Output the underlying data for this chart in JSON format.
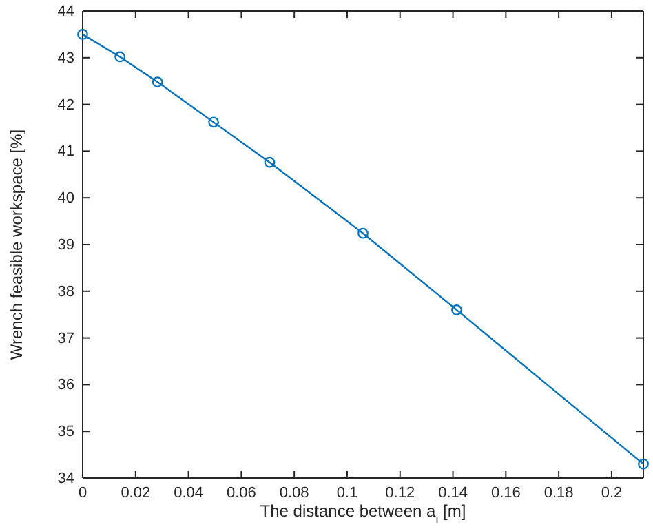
{
  "chart_data": {
    "type": "line",
    "xlabel": "The distance between a$_{i}$ [m]",
    "ylabel": "Wrench feasible workspace [%]",
    "x": [
      0,
      0.0141,
      0.0283,
      0.0495,
      0.0707,
      0.106,
      0.1414,
      0.212
    ],
    "series": [
      {
        "color": "#0072bd",
        "values": [
          43.5,
          43.02,
          42.48,
          41.62,
          40.76,
          39.24,
          37.6,
          34.3
        ]
      }
    ],
    "xlim": [
      0,
      0.212
    ],
    "xticks": [
      0,
      0.02,
      0.04,
      0.06,
      0.08,
      0.1,
      0.12,
      0.14,
      0.16,
      0.18,
      0.2
    ],
    "ylim": [
      34,
      44
    ],
    "yticks": [
      34,
      35,
      36,
      37,
      38,
      39,
      40,
      41,
      42,
      43,
      44
    ],
    "marker": "circle",
    "line_style": "solid"
  }
}
